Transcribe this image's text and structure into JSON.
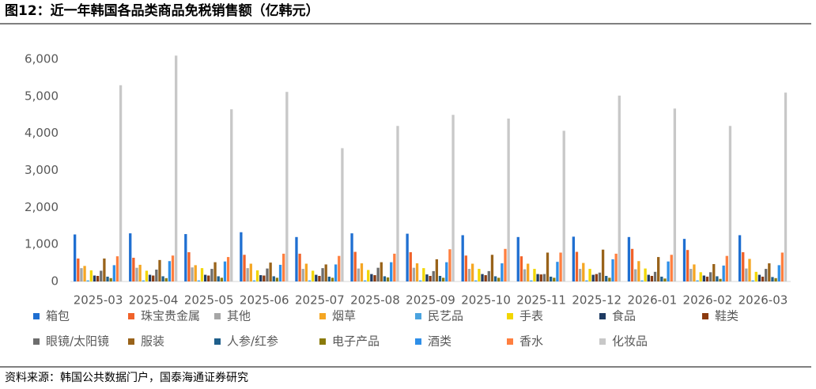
{
  "chart_data": {
    "type": "bar",
    "title": "图12：近一年韩国各品类商品免税销售额（亿韩元）",
    "source": "资料来源：韩国公共数据门户，国泰海通证券研究",
    "categories": [
      "2025-03",
      "2025-04",
      "2025-05",
      "2025-06",
      "2025-07",
      "2025-08",
      "2025-09",
      "2025-10",
      "2025-11",
      "2025-12",
      "2026-01",
      "2026-02",
      "2026-03"
    ],
    "ylim": [
      0,
      6000
    ],
    "yticks": [
      0,
      {
        "value": 1000,
        "label": "1,000"
      },
      {
        "value": 2000,
        "label": "2,000"
      },
      {
        "value": 3000,
        "label": "3,000"
      },
      {
        "value": 4000,
        "label": "4,000"
      },
      {
        "value": 5000,
        "label": "5,000"
      },
      {
        "value": 6000,
        "label": "6,000"
      }
    ],
    "series": [
      {
        "name": "箱包",
        "color": "#1f6fd1",
        "values": [
          1270,
          1300,
          1280,
          1330,
          1200,
          1300,
          1290,
          1250,
          1200,
          1210,
          1200,
          1150,
          1250
        ]
      },
      {
        "name": "珠宝贵金属",
        "color": "#f0622a",
        "values": [
          620,
          640,
          790,
          720,
          750,
          800,
          790,
          700,
          680,
          800,
          880,
          850,
          790
        ]
      },
      {
        "name": "其他",
        "color": "#a6a6a6",
        "values": [
          360,
          370,
          380,
          360,
          340,
          350,
          370,
          340,
          330,
          340,
          330,
          340,
          350
        ]
      },
      {
        "name": "烟草",
        "color": "#f5a623",
        "values": [
          420,
          450,
          440,
          480,
          480,
          490,
          490,
          480,
          480,
          500,
          550,
          460,
          610
        ]
      },
      {
        "name": "民艺品",
        "color": "#4aa3df",
        "values": [
          30,
          30,
          30,
          30,
          30,
          30,
          30,
          30,
          30,
          30,
          30,
          30,
          30
        ]
      },
      {
        "name": "手表",
        "color": "#f2d600",
        "values": [
          300,
          290,
          360,
          300,
          290,
          310,
          360,
          340,
          340,
          340,
          350,
          250,
          260
        ]
      },
      {
        "name": "食品",
        "color": "#1f3b63",
        "values": [
          160,
          180,
          180,
          170,
          180,
          200,
          190,
          200,
          200,
          180,
          180,
          160,
          180
        ]
      },
      {
        "name": "鞋类",
        "color": "#8b3a0e",
        "values": [
          150,
          160,
          160,
          160,
          150,
          170,
          150,
          170,
          190,
          200,
          150,
          130,
          130
        ]
      },
      {
        "name": "眼镜/太阳镜",
        "color": "#6d6d6d",
        "values": [
          290,
          320,
          340,
          350,
          360,
          370,
          280,
          280,
          200,
          240,
          260,
          250,
          340
        ]
      },
      {
        "name": "服装",
        "color": "#99631a",
        "values": [
          620,
          580,
          520,
          510,
          460,
          520,
          600,
          720,
          780,
          860,
          660,
          470,
          490
        ]
      },
      {
        "name": "人参/红参",
        "color": "#1f5f8b",
        "values": [
          130,
          140,
          140,
          140,
          130,
          140,
          150,
          140,
          130,
          150,
          130,
          140,
          120
        ]
      },
      {
        "name": "电子产品",
        "color": "#8a7a0a",
        "values": [
          90,
          90,
          100,
          100,
          100,
          110,
          100,
          100,
          100,
          100,
          80,
          70,
          90
        ]
      },
      {
        "name": "酒类",
        "color": "#2e8fe8",
        "values": [
          440,
          550,
          540,
          450,
          460,
          520,
          520,
          490,
          530,
          600,
          540,
          430,
          440
        ]
      },
      {
        "name": "香水",
        "color": "#ff7f3f",
        "values": [
          680,
          700,
          660,
          750,
          690,
          750,
          870,
          880,
          780,
          750,
          720,
          690,
          780
        ]
      },
      {
        "name": "化妆品",
        "color": "#c8c8c8",
        "values": [
          5300,
          6100,
          4650,
          5120,
          3600,
          4200,
          4500,
          4400,
          4070,
          5020,
          4670,
          4200,
          5100
        ]
      }
    ]
  }
}
